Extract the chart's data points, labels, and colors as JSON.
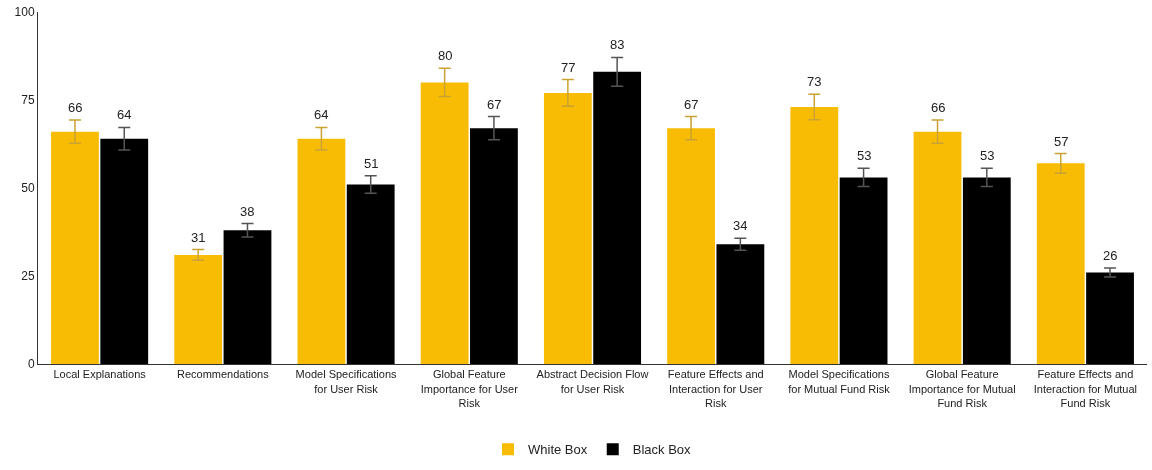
{
  "chart_data": {
    "type": "bar",
    "categories": [
      "Local Explanations",
      "Recommendations",
      "Model Specifications for User Risk",
      "Global Feature Importance for User Risk",
      "Abstract Decision Flow for User Risk",
      "Feature Effects and Interaction for User Risk",
      "Model Specifications for Mutual Fund Risk",
      "Global Feature Importance for Mutual Fund Risk",
      "Feature Effects and Interaction for Mutual Fund Risk"
    ],
    "series": [
      {
        "name": "White Box",
        "color": "#f9bc05",
        "values": [
          66,
          31,
          64,
          80,
          77,
          67,
          73,
          66,
          57
        ],
        "errors": [
          3.3,
          1.5,
          3.2,
          4,
          3.8,
          3.3,
          3.6,
          3.3,
          2.8
        ]
      },
      {
        "name": "Black Box",
        "color": "#000000",
        "values": [
          64,
          38,
          51,
          67,
          83,
          34,
          53,
          53,
          26
        ],
        "errors": [
          3.2,
          1.9,
          2.5,
          3.3,
          4.1,
          1.7,
          2.6,
          2.6,
          1.3
        ]
      }
    ],
    "ylim": [
      0,
      100
    ],
    "yticks": [
      0,
      25,
      50,
      75,
      100
    ],
    "grid": false,
    "legend": "bottom",
    "data_labels": true
  }
}
